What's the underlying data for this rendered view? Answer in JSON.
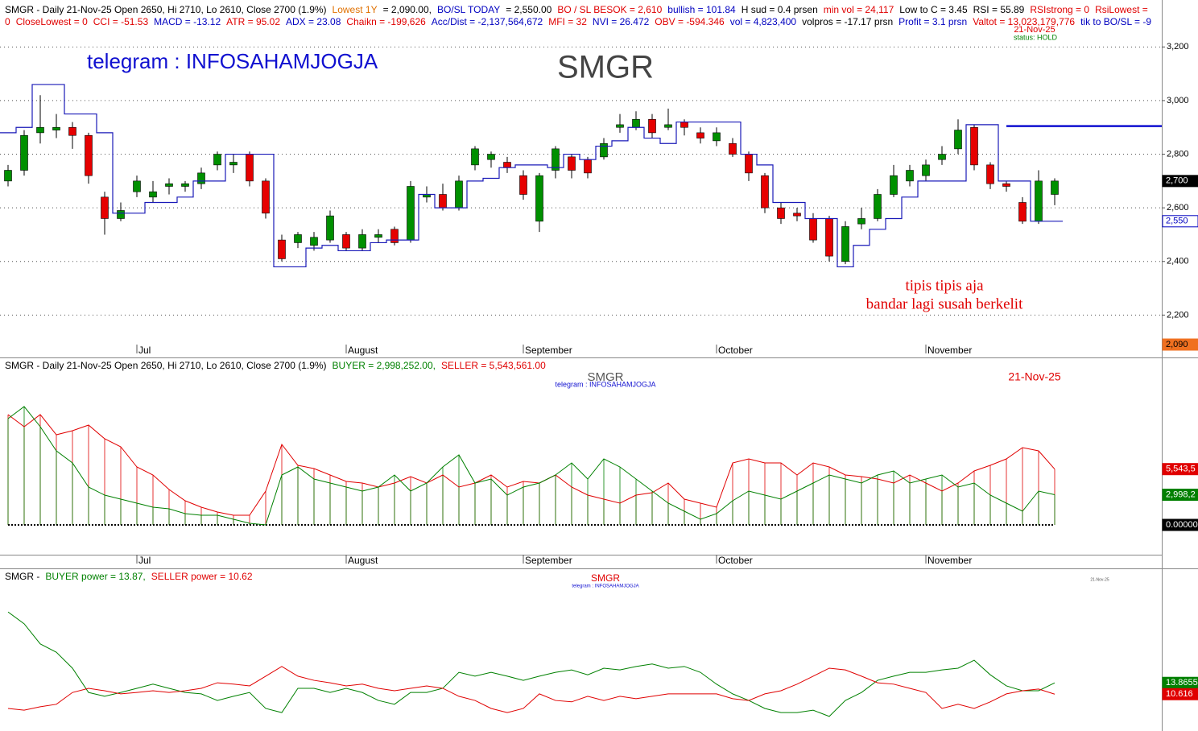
{
  "chart_data": [
    {
      "type": "candlestick",
      "title_segments": [
        {
          "text": "SMGR - Daily 21-Nov-25 Open 2650, Hi 2710, Lo 2610, Close 2700 (1.9%)",
          "color": "#000000"
        },
        {
          "text": "Lowest 1Y",
          "color": "#e07000"
        },
        {
          "text": "= 2,090.00,",
          "color": "#000000"
        },
        {
          "text": "BO/SL TODAY",
          "color": "#0000c0"
        },
        {
          "text": "= 2,550.00",
          "color": "#000000"
        },
        {
          "text": "BO / SL BESOK = 2,610",
          "color": "#e00000"
        },
        {
          "text": "bullish = 101.84",
          "color": "#0000c0"
        },
        {
          "text": "H sud = 0.4 prsen",
          "color": "#000000"
        },
        {
          "text": "min vol = 24,117",
          "color": "#e00000"
        },
        {
          "text": "Low to C = 3.45",
          "color": "#000000"
        },
        {
          "text": "RSI = 55.89",
          "color": "#000000"
        },
        {
          "text": "RSIstrong = 0",
          "color": "#e00000"
        },
        {
          "text": "RsiLowest = 0",
          "color": "#e00000"
        },
        {
          "text": "CloseLowest = 0",
          "color": "#e00000"
        },
        {
          "text": "CCI = -51.53",
          "color": "#e00000"
        },
        {
          "text": "MACD = -13.12",
          "color": "#0000c0"
        },
        {
          "text": "ATR = 95.02",
          "color": "#e00000"
        },
        {
          "text": "ADX = 23.08",
          "color": "#0000c0"
        },
        {
          "text": "Chaikn = -199,626",
          "color": "#e00000"
        },
        {
          "text": "Acc/Dist = -2,137,564,672",
          "color": "#0000c0"
        },
        {
          "text": "MFI = 32",
          "color": "#e00000"
        },
        {
          "text": "NVI = 26.472",
          "color": "#0000c0"
        },
        {
          "text": "OBV = -594.346",
          "color": "#e00000"
        },
        {
          "text": "vol = 4,823,400",
          "color": "#0000c0"
        },
        {
          "text": "volpros = -17.17 prsn",
          "color": "#000000"
        },
        {
          "text": "Profit = 3.1 prsn",
          "color": "#0000c0"
        },
        {
          "text": "Valtot = 13,023,179,776",
          "color": "#e00000"
        },
        {
          "text": "tik to BO/SL = -9",
          "color": "#0000c0"
        }
      ],
      "telegram": "telegram : INFOSAHAMJOGJA",
      "watermark": "SMGR",
      "date": "21-Nov-25",
      "status": "status: HOLD",
      "annotations": [
        "tipis tipis aja",
        "bandar lagi susah berkelit"
      ],
      "categories": [
        null,
        null,
        null,
        null,
        null,
        null,
        null,
        null,
        "Jul",
        null,
        null,
        null,
        null,
        null,
        null,
        null,
        null,
        null,
        null,
        null,
        null,
        "August",
        null,
        null,
        null,
        null,
        null,
        null,
        null,
        null,
        null,
        null,
        "September",
        null,
        null,
        null,
        null,
        null,
        null,
        null,
        null,
        null,
        null,
        null,
        "October",
        null,
        null,
        null,
        null,
        null,
        null,
        null,
        null,
        null,
        null,
        null,
        null,
        "November",
        null,
        null,
        null,
        null,
        null,
        null,
        null,
        null
      ],
      "open": [
        2700,
        2740,
        2880,
        2890,
        2900,
        2870,
        2640,
        2560,
        2660,
        2640,
        2680,
        2680,
        2690,
        2760,
        2760,
        2800,
        2700,
        2480,
        2470,
        2460,
        2480,
        2500,
        2450,
        2490,
        2520,
        2480,
        2640,
        2650,
        2600,
        2760,
        2780,
        2770,
        2720,
        2550,
        2740,
        2790,
        2780,
        2790,
        2900,
        2900,
        2930,
        2900,
        2920,
        2880,
        2850,
        2840,
        2800,
        2720,
        2600,
        2580,
        2560,
        2560,
        2400,
        2540,
        2560,
        2650,
        2700,
        2720,
        2780,
        2820,
        2900,
        2760,
        2690,
        2620,
        2550,
        2650
      ],
      "high": [
        2760,
        2890,
        3020,
        2950,
        2920,
        2880,
        2660,
        2620,
        2720,
        2700,
        2710,
        2700,
        2750,
        2810,
        2800,
        2810,
        2710,
        2500,
        2510,
        2510,
        2590,
        2510,
        2520,
        2520,
        2530,
        2700,
        2680,
        2690,
        2720,
        2830,
        2810,
        2790,
        2740,
        2730,
        2830,
        2800,
        2790,
        2860,
        2950,
        2960,
        2950,
        2970,
        2930,
        2900,
        2900,
        2860,
        2810,
        2730,
        2620,
        2600,
        2580,
        2570,
        2550,
        2600,
        2670,
        2760,
        2760,
        2780,
        2830,
        2930,
        2910,
        2770,
        2700,
        2640,
        2740,
        2710
      ],
      "low": [
        2680,
        2720,
        2840,
        2860,
        2820,
        2690,
        2500,
        2550,
        2640,
        2620,
        2650,
        2660,
        2670,
        2740,
        2730,
        2680,
        2560,
        2400,
        2450,
        2440,
        2470,
        2440,
        2440,
        2470,
        2460,
        2470,
        2620,
        2590,
        2590,
        2740,
        2750,
        2730,
        2630,
        2510,
        2710,
        2710,
        2710,
        2780,
        2880,
        2890,
        2860,
        2890,
        2870,
        2840,
        2830,
        2790,
        2700,
        2580,
        2540,
        2550,
        2470,
        2400,
        2390,
        2520,
        2550,
        2640,
        2680,
        2700,
        2760,
        2800,
        2740,
        2670,
        2660,
        2540,
        2540,
        2610
      ],
      "close": [
        2740,
        2870,
        2900,
        2900,
        2870,
        2720,
        2560,
        2590,
        2700,
        2660,
        2690,
        2690,
        2730,
        2800,
        2770,
        2700,
        2580,
        2410,
        2500,
        2490,
        2570,
        2450,
        2500,
        2500,
        2470,
        2680,
        2650,
        2600,
        2700,
        2820,
        2800,
        2750,
        2650,
        2720,
        2820,
        2740,
        2730,
        2840,
        2910,
        2930,
        2880,
        2910,
        2900,
        2860,
        2880,
        2800,
        2730,
        2600,
        2560,
        2570,
        2480,
        2420,
        2530,
        2560,
        2650,
        2720,
        2740,
        2760,
        2800,
        2890,
        2760,
        2690,
        2680,
        2550,
        2700,
        2700
      ],
      "up_color": "#009000",
      "down_color": "#e60000",
      "stop_line": {
        "color": "#1a1ab8",
        "values": [
          2880,
          2900,
          3060,
          3060,
          2950,
          2950,
          2880,
          2580,
          2580,
          2620,
          2620,
          2640,
          2700,
          2700,
          2800,
          2800,
          2800,
          2380,
          2380,
          2450,
          2460,
          2440,
          2440,
          2470,
          2480,
          2480,
          2650,
          2600,
          2600,
          2700,
          2710,
          2750,
          2760,
          2760,
          2750,
          2800,
          2780,
          2830,
          2850,
          2900,
          2860,
          2840,
          2920,
          2920,
          2920,
          2920,
          2800,
          2760,
          2620,
          2620,
          2560,
          2560,
          2380,
          2460,
          2520,
          2560,
          2640,
          2700,
          2700,
          2700,
          2910,
          2910,
          2700,
          2700,
          2550,
          2550
        ]
      },
      "hline": {
        "value": 2905,
        "color": "#1010d0"
      },
      "ylim": [
        2090,
        3240
      ],
      "yticks": [
        {
          "value": 2200,
          "label": "2,200"
        },
        {
          "value": 2400,
          "label": "2,400"
        },
        {
          "value": 2600,
          "label": "2,600"
        },
        {
          "value": 2800,
          "label": "2,800"
        },
        {
          "value": 3000,
          "label": "3,000"
        },
        {
          "value": 3200,
          "label": "3,200"
        }
      ],
      "grid": true,
      "right_labels": [
        {
          "value": 2700,
          "label": "2,700",
          "bg": "#000000",
          "fg": "#ffffff",
          "border": "#000000"
        },
        {
          "value": 2550,
          "label": "2,550",
          "bg": "#ffffff",
          "fg": "#0000c0",
          "border": "#0000c0"
        },
        {
          "value": 2090,
          "label": "2,090",
          "bg": "#f07020",
          "fg": "#000000",
          "border": "#f07020"
        }
      ]
    },
    {
      "type": "line",
      "title_segments": [
        {
          "text": "SMGR - Daily 21-Nov-25 Open 2650, Hi 2710, Lo 2610, Close 2700 (1.9%)",
          "color": "#000000"
        },
        {
          "text": "BUYER = 2,998,252.00,",
          "color": "#008000"
        },
        {
          "text": "SELLER = 5,543,561.00",
          "color": "#e00000"
        }
      ],
      "watermark": "SMGR",
      "telegram": "telegram : INFOSAHAMJOGJA",
      "date": "21-Nov-25",
      "categories": [
        null,
        null,
        null,
        null,
        null,
        null,
        null,
        null,
        "Jul",
        null,
        null,
        null,
        null,
        null,
        null,
        null,
        null,
        null,
        null,
        null,
        null,
        "August",
        null,
        null,
        null,
        null,
        null,
        null,
        null,
        null,
        null,
        null,
        "September",
        null,
        null,
        null,
        null,
        null,
        null,
        null,
        null,
        null,
        null,
        null,
        "October",
        null,
        null,
        null,
        null,
        null,
        null,
        null,
        null,
        null,
        null,
        null,
        null,
        "November",
        null,
        null,
        null,
        null,
        null,
        null,
        null,
        null
      ],
      "hatch": true,
      "series": [
        {
          "color": "#e00000",
          "values": [
            10960000,
            9760000,
            10960000,
            8960000,
            9360000,
            9920000,
            8560000,
            7760000,
            5760000,
            4960000,
            3520000,
            2400000,
            1760000,
            1280000,
            960000,
            960000,
            3360000,
            8000000,
            5920000,
            5600000,
            4960000,
            4320000,
            4160000,
            3760000,
            4160000,
            4800000,
            4160000,
            4960000,
            3760000,
            4160000,
            4960000,
            3760000,
            4320000,
            4160000,
            4960000,
            3760000,
            2960000,
            2560000,
            2160000,
            2960000,
            3200000,
            4160000,
            2560000,
            2160000,
            1760000,
            6160000,
            6560000,
            6160000,
            6160000,
            4960000,
            6160000,
            5760000,
            4960000,
            4800000,
            4560000,
            4160000,
            4960000,
            4160000,
            3360000,
            4160000,
            5360000,
            5920000,
            6560000,
            7680000,
            7360000,
            5543561
          ]
        },
        {
          "color": "#008000",
          "values": [
            10560000,
            11760000,
            9760000,
            7360000,
            6160000,
            3760000,
            2960000,
            2560000,
            2160000,
            1760000,
            1600000,
            1120000,
            960000,
            960000,
            560000,
            160000,
            0,
            4960000,
            5760000,
            4560000,
            4160000,
            3760000,
            3360000,
            3760000,
            4960000,
            3360000,
            4160000,
            5760000,
            6960000,
            4160000,
            4560000,
            2960000,
            3760000,
            4160000,
            4960000,
            6160000,
            4560000,
            6560000,
            5760000,
            4560000,
            3360000,
            2160000,
            1360000,
            560000,
            1120000,
            2400000,
            3360000,
            2960000,
            2560000,
            3360000,
            4160000,
            4960000,
            4560000,
            4160000,
            4960000,
            5360000,
            4160000,
            4560000,
            4960000,
            3760000,
            4160000,
            2960000,
            2160000,
            1360000,
            3360000,
            2998252
          ]
        }
      ],
      "ylim": [
        -3040000,
        16400000
      ],
      "right_labels": [
        {
          "value": 5543561,
          "label": "5,543,5",
          "bg": "#e00000",
          "fg": "#ffffff",
          "border": "#e00000"
        },
        {
          "value": 2998252,
          "label": "2,998,2",
          "bg": "#008000",
          "fg": "#ffffff",
          "border": "#008000"
        },
        {
          "value": 0,
          "label": "0.00000",
          "bg": "#000000",
          "fg": "#ffffff",
          "border": "#000000"
        }
      ]
    },
    {
      "type": "line",
      "title_segments": [
        {
          "text": "SMGR -",
          "color": "#000000"
        },
        {
          "text": "BUYER power  = 13.87,",
          "color": "#008000"
        },
        {
          "text": "SELLER power  = 10.62",
          "color": "#e00000"
        }
      ],
      "watermark": "SMGR",
      "telegram": "telegram : INFOSAHAMJOGJA",
      "date": "21-Nov-25",
      "hatch": false,
      "series": [
        {
          "color": "#008000",
          "values": [
            34.3,
            30.9,
            25.1,
            22.7,
            18.1,
            11.1,
            10.0,
            11.1,
            12.3,
            13.5,
            12.3,
            11.1,
            10.7,
            8.8,
            10.0,
            11.1,
            6.5,
            5.3,
            12.3,
            12.3,
            11.1,
            12.3,
            11.1,
            8.8,
            7.7,
            11.1,
            11.1,
            12.3,
            16.9,
            15.8,
            16.9,
            15.8,
            14.6,
            15.8,
            16.9,
            17.6,
            16.2,
            18.1,
            17.6,
            18.6,
            19.3,
            18.1,
            18.6,
            16.9,
            13.5,
            10.7,
            8.8,
            6.5,
            5.3,
            5.3,
            6.0,
            4.2,
            8.8,
            11.1,
            14.6,
            15.8,
            16.9,
            16.9,
            17.6,
            18.1,
            20.4,
            16.2,
            13.0,
            11.6,
            11.6,
            13.8655
          ]
        },
        {
          "color": "#e00000",
          "values": [
            6.5,
            6.0,
            7.0,
            7.7,
            11.1,
            12.3,
            11.6,
            10.7,
            11.1,
            11.6,
            11.1,
            11.6,
            12.3,
            13.9,
            13.5,
            13.0,
            15.8,
            18.6,
            15.8,
            14.6,
            13.9,
            13.0,
            13.5,
            12.3,
            11.6,
            12.3,
            13.0,
            12.3,
            10.0,
            8.8,
            6.5,
            5.3,
            6.5,
            10.7,
            8.8,
            8.4,
            10.0,
            8.8,
            10.0,
            9.3,
            10.0,
            10.7,
            10.7,
            10.7,
            10.7,
            9.3,
            8.8,
            10.7,
            11.6,
            13.5,
            15.8,
            18.1,
            17.6,
            15.8,
            13.9,
            13.5,
            12.3,
            11.1,
            6.5,
            7.7,
            6.5,
            8.4,
            10.7,
            11.6,
            12.1,
            10.616
          ]
        }
      ],
      "ylim": [
        0,
        46.4
      ],
      "right_labels": [
        {
          "value": 13.8655,
          "label": "13.8655",
          "bg": "#008000",
          "fg": "#ffffff",
          "border": "#008000"
        },
        {
          "value": 10.616,
          "label": "10.616",
          "bg": "#e00000",
          "fg": "#ffffff",
          "border": "#e00000"
        }
      ]
    }
  ]
}
